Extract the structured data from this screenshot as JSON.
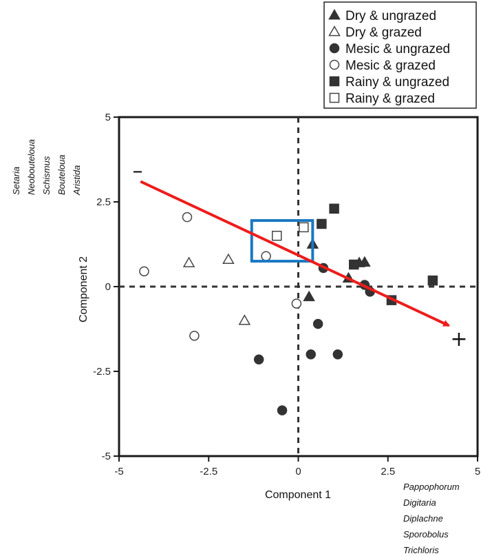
{
  "chart_data": {
    "type": "scatter",
    "xlabel": "Component 1",
    "ylabel": "Component 2",
    "xlim": [
      -5,
      5
    ],
    "ylim": [
      -5,
      5
    ],
    "xticks": [
      "-5",
      "-2.5",
      "0",
      "2.5",
      "5"
    ],
    "yticks": [
      "-5",
      "-2.5",
      "0",
      "2.5",
      "5"
    ],
    "grid": false,
    "zero_lines": "dashed",
    "legend_position": "top-right",
    "series": [
      {
        "name": "Dry & ungrazed",
        "marker": "triangle",
        "filled": true,
        "points": [
          [
            0.3,
            -0.3
          ],
          [
            0.4,
            1.25
          ],
          [
            1.4,
            0.25
          ],
          [
            1.7,
            0.7
          ],
          [
            1.85,
            0.72
          ]
        ]
      },
      {
        "name": "Dry & grazed",
        "marker": "triangle",
        "filled": false,
        "points": [
          [
            -3.05,
            0.7
          ],
          [
            -1.95,
            0.8
          ],
          [
            -1.5,
            -1.0
          ]
        ]
      },
      {
        "name": "Mesic & ungrazed",
        "marker": "circle",
        "filled": true,
        "points": [
          [
            0.7,
            0.55
          ],
          [
            1.85,
            0.05
          ],
          [
            2.0,
            -0.15
          ],
          [
            0.55,
            -1.1
          ],
          [
            0.35,
            -2.0
          ],
          [
            1.1,
            -2.0
          ],
          [
            -1.1,
            -2.15
          ],
          [
            -0.45,
            -3.65
          ]
        ]
      },
      {
        "name": "Mesic & grazed",
        "marker": "circle",
        "filled": false,
        "points": [
          [
            -4.3,
            0.45
          ],
          [
            -3.1,
            2.05
          ],
          [
            -0.9,
            0.9
          ],
          [
            -0.05,
            -0.5
          ],
          [
            -2.9,
            -1.45
          ]
        ]
      },
      {
        "name": "Rainy & ungrazed",
        "marker": "square",
        "filled": true,
        "points": [
          [
            1.0,
            2.3
          ],
          [
            0.65,
            1.85
          ],
          [
            1.55,
            0.65
          ],
          [
            2.6,
            -0.4
          ],
          [
            3.75,
            0.18
          ]
        ]
      },
      {
        "name": "Rainy & grazed",
        "marker": "square",
        "filled": false,
        "points": [
          [
            -0.6,
            1.5
          ],
          [
            0.15,
            1.75
          ]
        ]
      }
    ],
    "arrow": {
      "from": [
        -4.4,
        3.1
      ],
      "to": [
        4.2,
        -1.15
      ],
      "color": "#ee1c1c"
    },
    "highlight_box": {
      "x": [
        -1.3,
        0.4
      ],
      "y": [
        0.75,
        1.95
      ],
      "color": "#1a78c2"
    },
    "negative_pole_label": "–",
    "positive_pole_label": "+",
    "left_genera": [
      "Setaria",
      "Neobouteloua",
      "Schismus",
      "Bouteloua",
      "Aristida"
    ],
    "right_genera": [
      "Pappophorum",
      "Digitaria",
      "Diplachne",
      "Sporobolus",
      "Trichloris"
    ]
  }
}
